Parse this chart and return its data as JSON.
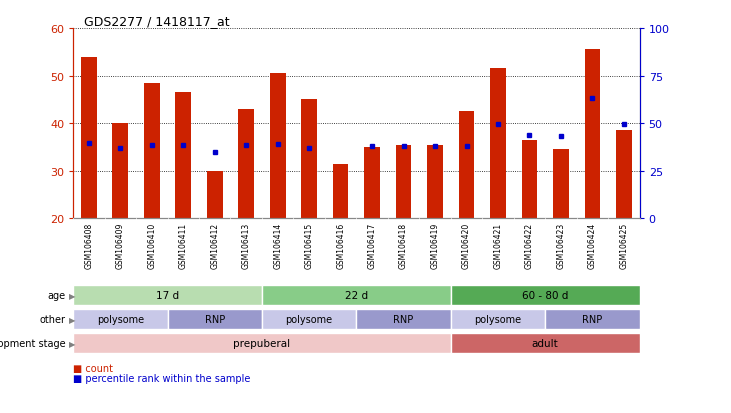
{
  "title": "GDS2277 / 1418117_at",
  "samples": [
    "GSM106408",
    "GSM106409",
    "GSM106410",
    "GSM106411",
    "GSM106412",
    "GSM106413",
    "GSM106414",
    "GSM106415",
    "GSM106416",
    "GSM106417",
    "GSM106418",
    "GSM106419",
    "GSM106420",
    "GSM106421",
    "GSM106422",
    "GSM106423",
    "GSM106424",
    "GSM106425"
  ],
  "counts": [
    54.0,
    40.0,
    48.5,
    46.5,
    30.0,
    43.0,
    50.5,
    45.0,
    31.5,
    35.0,
    35.5,
    35.5,
    42.5,
    51.5,
    36.5,
    34.5,
    55.5,
    38.5
  ],
  "percentiles": [
    39.5,
    37.0,
    38.5,
    38.5,
    35.0,
    38.5,
    39.0,
    37.0,
    null,
    38.0,
    38.0,
    38.0,
    38.0,
    49.5,
    44.0,
    43.5,
    63.0,
    49.5
  ],
  "ylim_left": [
    20,
    60
  ],
  "ylim_right": [
    0,
    100
  ],
  "yticks_left": [
    20,
    30,
    40,
    50,
    60
  ],
  "yticks_right": [
    0,
    25,
    50,
    75,
    100
  ],
  "bar_color": "#cc2200",
  "dot_color": "#0000cc",
  "bar_bottom": 20,
  "age_groups": [
    {
      "label": "17 d",
      "start": 0,
      "end": 6,
      "color": "#b8ddb0"
    },
    {
      "label": "22 d",
      "start": 6,
      "end": 12,
      "color": "#88cc88"
    },
    {
      "label": "60 - 80 d",
      "start": 12,
      "end": 18,
      "color": "#55aa55"
    }
  ],
  "other_groups": [
    {
      "label": "polysome",
      "start": 0,
      "end": 3,
      "color": "#c8c8e8"
    },
    {
      "label": "RNP",
      "start": 3,
      "end": 6,
      "color": "#9999cc"
    },
    {
      "label": "polysome",
      "start": 6,
      "end": 9,
      "color": "#c8c8e8"
    },
    {
      "label": "RNP",
      "start": 9,
      "end": 12,
      "color": "#9999cc"
    },
    {
      "label": "polysome",
      "start": 12,
      "end": 15,
      "color": "#c8c8e8"
    },
    {
      "label": "RNP",
      "start": 15,
      "end": 18,
      "color": "#9999cc"
    }
  ],
  "dev_groups": [
    {
      "label": "prepuberal",
      "start": 0,
      "end": 12,
      "color": "#f0c8c8"
    },
    {
      "label": "adult",
      "start": 12,
      "end": 18,
      "color": "#cc6666"
    }
  ],
  "row_labels": [
    "age",
    "other",
    "development stage"
  ],
  "axis_label_color_left": "#cc2200",
  "axis_label_color_right": "#0000cc",
  "background_color": "#ffffff",
  "tick_area_bg": "#cccccc",
  "xlim": [
    -0.5,
    17.5
  ]
}
